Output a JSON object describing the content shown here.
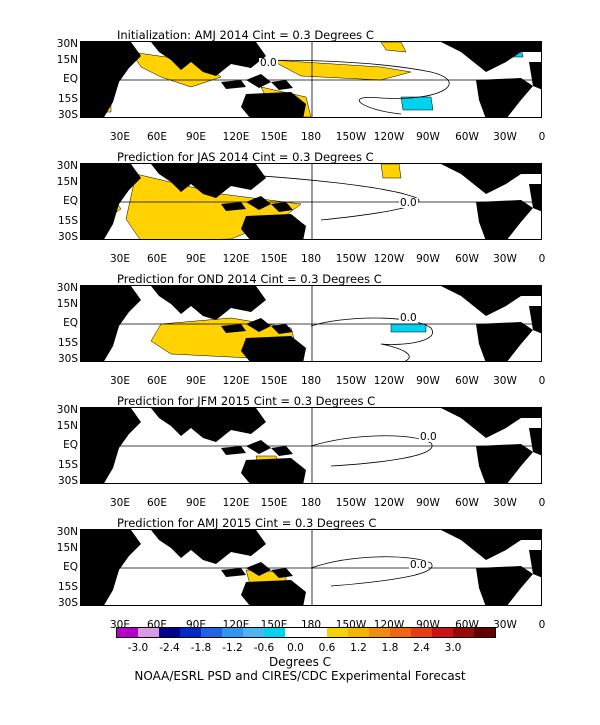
{
  "panels": [
    {
      "title": "Initialization: AMJ 2014  Cint = 0.3 Degrees C",
      "contour_label": "0.0"
    },
    {
      "title": "Prediction for JAS 2014  Cint = 0.3 Degrees C",
      "contour_label": "0.0"
    },
    {
      "title": "Prediction for OND 2014  Cint = 0.3 Degrees C",
      "contour_label": "0.0"
    },
    {
      "title": "Prediction for JFM 2015  Cint = 0.3 Degrees C",
      "contour_label": "0.0"
    },
    {
      "title": "Prediction for AMJ 2015  Cint = 0.3 Degrees C",
      "contour_label": "0.0"
    }
  ],
  "lat_labels": [
    "30N",
    "15N",
    "EQ",
    "15S",
    "30S"
  ],
  "lon_labels": [
    "30E",
    "60E",
    "90E",
    "120E",
    "150E",
    "180",
    "150W",
    "120W",
    "90W",
    "60W",
    "30W",
    "0"
  ],
  "colorbar": {
    "colors": [
      "#b400c8",
      "#d89ae0",
      "#00008c",
      "#0028c8",
      "#1e64e6",
      "#3296f0",
      "#50b4f0",
      "#00d2f0",
      "#ffffff",
      "#ffffff",
      "#f5d20a",
      "#f5b400",
      "#f08c14",
      "#f06414",
      "#e63c14",
      "#c81414",
      "#960a0a",
      "#640000"
    ],
    "ticks": [
      "-3.0",
      "-2.4",
      "-1.8",
      "-1.2",
      "-0.6",
      "0.0",
      "0.6",
      "1.2",
      "1.8",
      "2.4",
      "3.0"
    ],
    "units": "Degrees C"
  },
  "colors": {
    "land": "#000000",
    "warm": "#ffd200",
    "cool": "#00d2f0"
  },
  "credit": "NOAA/ESRL PSD and CIRES/CDC Experimental Forecast"
}
